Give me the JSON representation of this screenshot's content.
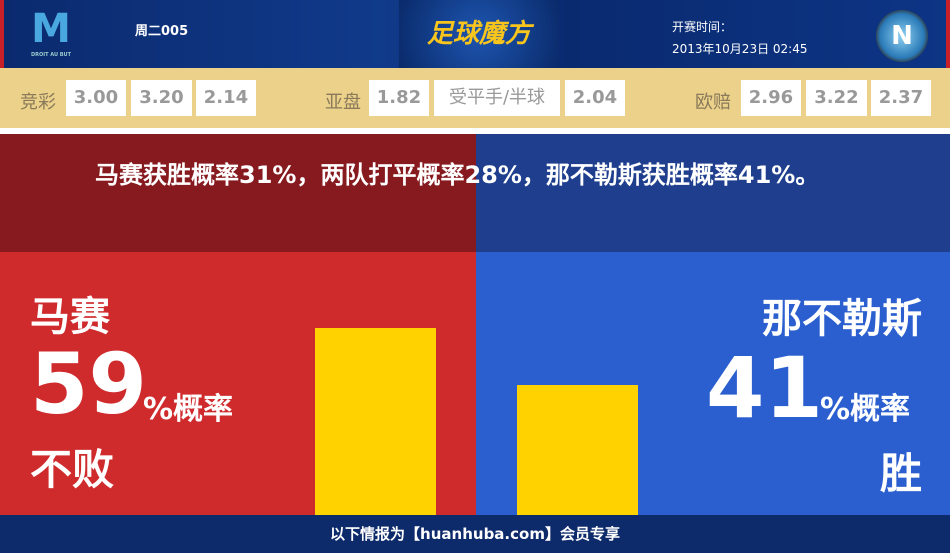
{
  "header": {
    "home_logo_text": "DROIT AU BUT",
    "match_id": "周二005",
    "brand": "足球魔方",
    "kickoff_label": "开赛时间：",
    "kickoff_time": "2013年10月23日 02:45",
    "away_logo_text": "N"
  },
  "odds": {
    "jingcai": {
      "label": "竞彩",
      "values": [
        "3.00",
        "3.20",
        "2.14"
      ]
    },
    "asian": {
      "label": "亚盘",
      "values": [
        "1.82",
        "受平手/半球",
        "2.04"
      ]
    },
    "euro": {
      "label": "欧赔",
      "values": [
        "2.96",
        "3.22",
        "2.37"
      ]
    }
  },
  "headline": "马赛获胜概率31%，两队打平概率28%，那不勒斯获胜概率41%。",
  "home": {
    "name": "马赛",
    "percent": 59,
    "percent_text": "59",
    "suffix": "%概率",
    "outcome": "不败"
  },
  "away": {
    "name": "那不勒斯",
    "percent": 41,
    "percent_text": "41",
    "suffix": "%概率",
    "outcome": "胜"
  },
  "colors": {
    "home_dark": "#861a1e",
    "home": "#cf2a2c",
    "away_dark": "#1f3f8e",
    "away": "#2b5fcf",
    "bar": "#ffd200"
  },
  "footer": "以下情报为【huanhuba.com】会员专享"
}
